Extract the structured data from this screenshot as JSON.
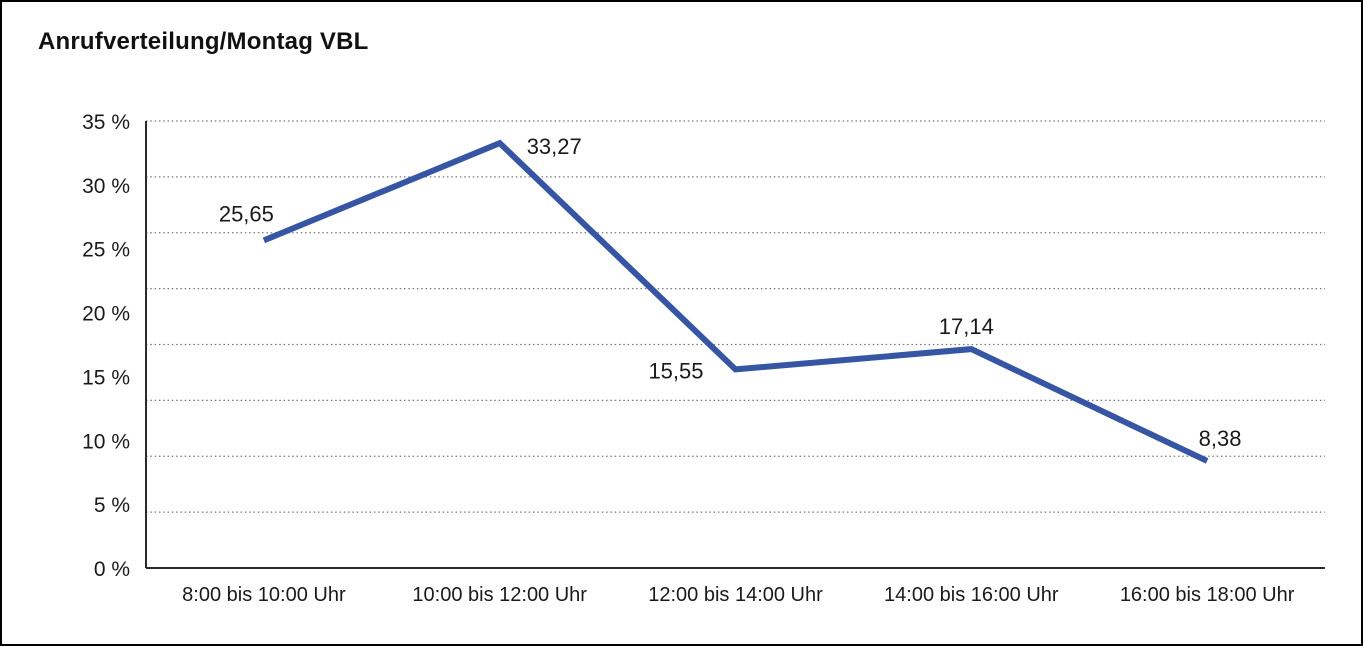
{
  "chart_data": {
    "type": "line",
    "title": "Anrufverteilung/Montag VBL",
    "categories": [
      "8:00 bis 10:00 Uhr",
      "10:00 bis 12:00 Uhr",
      "12:00 bis 14:00 Uhr",
      "14:00 bis 16:00 Uhr",
      "16:00 bis 18:00 Uhr"
    ],
    "values": [
      25.65,
      33.27,
      15.55,
      17.14,
      8.38
    ],
    "value_labels": [
      "25,65",
      "33,27",
      "15,55",
      "17,14",
      "8,38"
    ],
    "y_tick_labels": [
      "35 %",
      "30 %",
      "25 %",
      "20 %",
      "15 %",
      "10 %",
      "5 %",
      "0 %"
    ],
    "ylim": [
      0,
      35
    ],
    "y_tick_step": 5,
    "xlabel": "",
    "ylabel": "",
    "legend": "none",
    "grid": "horizontal-dotted",
    "gridline_intervals": 8,
    "line_color": "#3656A4",
    "grid_color": "#777777",
    "axis_color": "#2b2b2b",
    "text_color": "#1a1a1a",
    "background": "#ffffff"
  }
}
